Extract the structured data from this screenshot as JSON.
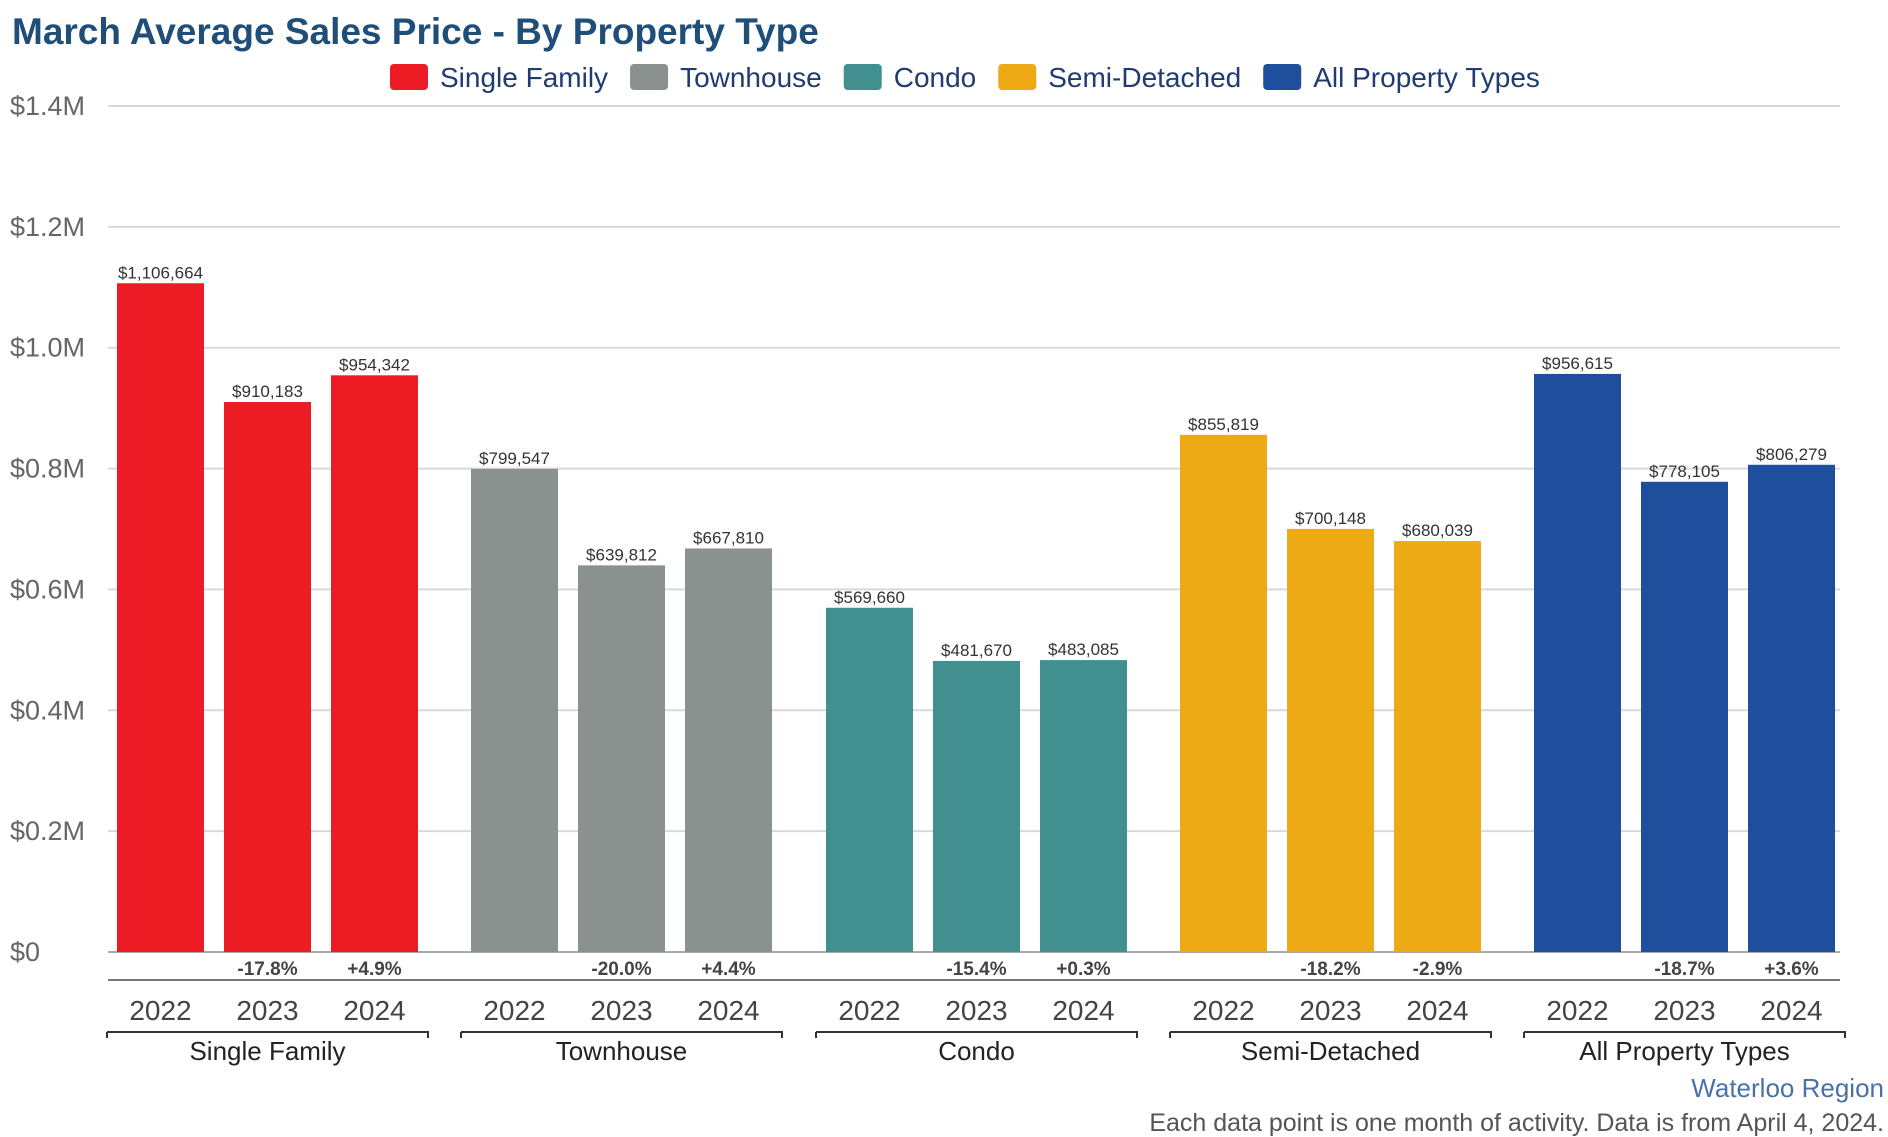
{
  "chart_data": {
    "type": "bar",
    "title": "March Average Sales Price - By Property Type",
    "ylim": [
      0,
      1400000
    ],
    "y_ticks": [
      {
        "value": 0,
        "label": "$0"
      },
      {
        "value": 200000,
        "label": "$0.2M"
      },
      {
        "value": 400000,
        "label": "$0.4M"
      },
      {
        "value": 600000,
        "label": "$0.6M"
      },
      {
        "value": 800000,
        "label": "$0.8M"
      },
      {
        "value": 1000000,
        "label": "$1.0M"
      },
      {
        "value": 1200000,
        "label": "$1.2M"
      },
      {
        "value": 1400000,
        "label": "$1.4M"
      }
    ],
    "grid": true,
    "legend_position": "top",
    "legend": [
      {
        "name": "Single Family",
        "color": "#ed1c24"
      },
      {
        "name": "Townhouse",
        "color": "#8a918f"
      },
      {
        "name": "Condo",
        "color": "#428f8f"
      },
      {
        "name": "Semi-Detached",
        "color": "#eeaa14"
      },
      {
        "name": "All Property Types",
        "color": "#1f4e9c"
      }
    ],
    "groups": [
      {
        "name": "Single Family",
        "color": "#ed1c24",
        "bars": [
          {
            "year": "2022",
            "value": 1106664,
            "value_label": "$1,106,664",
            "change": ""
          },
          {
            "year": "2023",
            "value": 910183,
            "value_label": "$910,183",
            "change": "-17.8%"
          },
          {
            "year": "2024",
            "value": 954342,
            "value_label": "$954,342",
            "change": "+4.9%"
          }
        ]
      },
      {
        "name": "Townhouse",
        "color": "#8a918f",
        "bars": [
          {
            "year": "2022",
            "value": 799547,
            "value_label": "$799,547",
            "change": ""
          },
          {
            "year": "2023",
            "value": 639812,
            "value_label": "$639,812",
            "change": "-20.0%"
          },
          {
            "year": "2024",
            "value": 667810,
            "value_label": "$667,810",
            "change": "+4.4%"
          }
        ]
      },
      {
        "name": "Condo",
        "color": "#428f8f",
        "bars": [
          {
            "year": "2022",
            "value": 569660,
            "value_label": "$569,660",
            "change": ""
          },
          {
            "year": "2023",
            "value": 481670,
            "value_label": "$481,670",
            "change": "-15.4%"
          },
          {
            "year": "2024",
            "value": 483085,
            "value_label": "$483,085",
            "change": "+0.3%"
          }
        ]
      },
      {
        "name": "Semi-Detached",
        "color": "#eeaa14",
        "bars": [
          {
            "year": "2022",
            "value": 855819,
            "value_label": "$855,819",
            "change": ""
          },
          {
            "year": "2023",
            "value": 700148,
            "value_label": "$700,148",
            "change": "-18.2%"
          },
          {
            "year": "2024",
            "value": 680039,
            "value_label": "$680,039",
            "change": "-2.9%"
          }
        ]
      },
      {
        "name": "All Property Types",
        "color": "#1f4e9c",
        "bars": [
          {
            "year": "2022",
            "value": 956615,
            "value_label": "$956,615",
            "change": ""
          },
          {
            "year": "2023",
            "value": 778105,
            "value_label": "$778,105",
            "change": "-18.7%"
          },
          {
            "year": "2024",
            "value": 806279,
            "value_label": "$806,279",
            "change": "+3.6%"
          }
        ]
      }
    ],
    "region": "Waterloo Region",
    "footnote": "Each data point is one month of activity. Data is from April 4, 2024."
  }
}
